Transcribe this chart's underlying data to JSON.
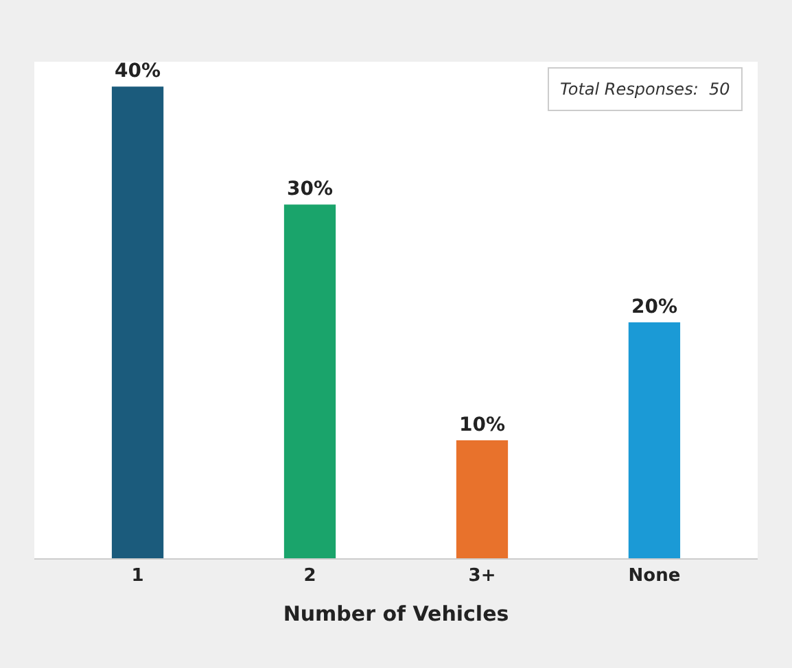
{
  "chart_data": {
    "type": "bar",
    "xlabel": "Number of Vehicles",
    "categories": [
      "1",
      "2",
      "3+",
      "None"
    ],
    "values": [
      40,
      30,
      10,
      20
    ],
    "value_labels": [
      "40%",
      "30%",
      "10%",
      "20%"
    ],
    "colors": [
      "#1b5b7c",
      "#1aa46b",
      "#e8722c",
      "#1b9ad6"
    ],
    "annotations": [
      "Total Responses:  50"
    ],
    "legend": false
  }
}
